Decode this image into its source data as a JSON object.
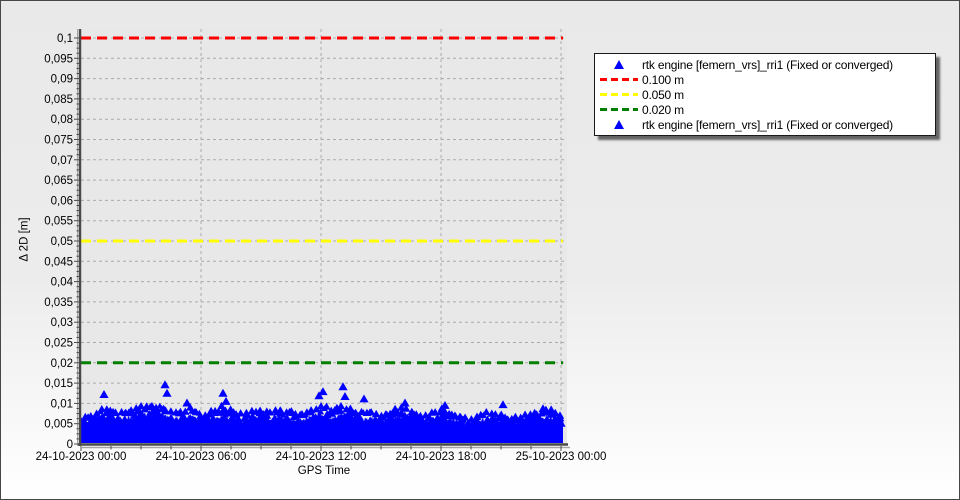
{
  "chart_data": {
    "type": "scatter",
    "title": "",
    "xlabel": "GPS Time",
    "ylabel": "Δ 2D [m]",
    "x_tick_labels": [
      "24-10-2023 00:00",
      "24-10-2023 06:00",
      "24-10-2023 12:00",
      "24-10-2023 18:00",
      "25-10-2023 00:00"
    ],
    "x_tick_hours": [
      0,
      6,
      12,
      18,
      24
    ],
    "x_minor_tick_step_hours": 1.5,
    "x_range_hours": [
      0,
      24
    ],
    "ylim": [
      0,
      0.1
    ],
    "y_tick_step": 0.005,
    "y_minor_tick_step": 0.00125,
    "y_tick_labels": [
      "0",
      "0,005",
      "0,01",
      "0,015",
      "0,02",
      "0,025",
      "0,03",
      "0,035",
      "0,04",
      "0,045",
      "0,05",
      "0,055",
      "0,06",
      "0,065",
      "0,07",
      "0,075",
      "0,08",
      "0,085",
      "0,09",
      "0,095",
      "0,1"
    ],
    "grid": {
      "on": true,
      "h_step": 0.005,
      "v_step_hours": 6,
      "style": "dashed"
    },
    "legend_position": "top-right",
    "thresholds": [
      {
        "label": "0.100 m",
        "value": 0.1,
        "color": "#ff0000"
      },
      {
        "label": "0.050 m",
        "value": 0.05,
        "color": "#ffff00"
      },
      {
        "label": "0.020 m",
        "value": 0.02,
        "color": "#007f00"
      }
    ],
    "series": {
      "name": "rtk engine [femern_vrs]_rri1 (Fixed or converged)",
      "color": "#0000ff",
      "marker": "triangle-up",
      "description": "dense scatter band from 0 m up to jagged envelope, all points below 0.016 m",
      "band_hours_step": 0.5,
      "band_solid_top": [
        0.0048,
        0.0056,
        0.006,
        0.0062,
        0.0055,
        0.006,
        0.0066,
        0.007,
        0.0065,
        0.0058,
        0.0054,
        0.006,
        0.0052,
        0.0056,
        0.0062,
        0.0058,
        0.0052,
        0.0056,
        0.006,
        0.0055,
        0.0062,
        0.0056,
        0.0052,
        0.0058,
        0.0064,
        0.006,
        0.0066,
        0.006,
        0.0055,
        0.0058,
        0.0052,
        0.0056,
        0.0062,
        0.0058,
        0.0052,
        0.0055,
        0.006,
        0.0055,
        0.0048,
        0.0045,
        0.0052,
        0.0056,
        0.005,
        0.0046,
        0.005,
        0.0054,
        0.0058,
        0.006,
        0.0052
      ],
      "band_peak": [
        0.0075,
        0.0082,
        0.0092,
        0.0096,
        0.0088,
        0.0092,
        0.01,
        0.0106,
        0.01,
        0.009,
        0.0085,
        0.0098,
        0.0082,
        0.0088,
        0.01,
        0.0092,
        0.0082,
        0.0088,
        0.0092,
        0.0085,
        0.0095,
        0.0088,
        0.0082,
        0.009,
        0.0102,
        0.0095,
        0.0104,
        0.0094,
        0.0086,
        0.009,
        0.0082,
        0.0088,
        0.0098,
        0.009,
        0.0082,
        0.0086,
        0.0094,
        0.0086,
        0.0076,
        0.0072,
        0.0082,
        0.0088,
        0.008,
        0.0074,
        0.0078,
        0.0084,
        0.009,
        0.0092,
        0.0082
      ],
      "outliers": [
        [
          1.15,
          0.0133
        ],
        [
          4.2,
          0.0157
        ],
        [
          4.3,
          0.0136
        ],
        [
          5.3,
          0.0112
        ],
        [
          7.1,
          0.0136
        ],
        [
          7.25,
          0.0116
        ],
        [
          11.9,
          0.013
        ],
        [
          12.1,
          0.014
        ],
        [
          13.1,
          0.0152
        ],
        [
          13.2,
          0.0128
        ],
        [
          14.15,
          0.0122
        ],
        [
          16.2,
          0.0112
        ],
        [
          18.2,
          0.0106
        ],
        [
          21.1,
          0.0108
        ],
        [
          23.1,
          0.0098
        ]
      ]
    }
  },
  "legend": {
    "items": [
      {
        "type": "marker",
        "label": "rtk engine [femern_vrs]_rri1 (Fixed or converged)",
        "color": "#0000ff"
      },
      {
        "type": "dash",
        "label": "0.100 m",
        "color": "#ff0000"
      },
      {
        "type": "dash",
        "label": "0.050 m",
        "color": "#ffff00"
      },
      {
        "type": "dash",
        "label": "0.020 m",
        "color": "#007f00"
      },
      {
        "type": "marker",
        "label": "rtk engine [femern_vrs]_rri1 (Fixed or converged)",
        "color": "#0000ff"
      }
    ]
  },
  "colors": {
    "plot_bg": "#e8e8e8",
    "grid": "#ababab",
    "axis": "#4a4a4a",
    "axis_shadow": "#a5a5a5",
    "page_border": "#474747"
  }
}
